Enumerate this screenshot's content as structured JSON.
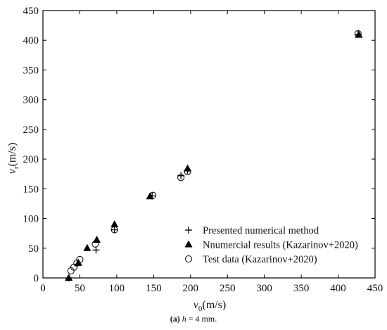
{
  "chart_data": {
    "type": "scatter",
    "xlabel": {
      "main": "v",
      "sub": "0",
      "unit": "(m/s)"
    },
    "ylabel": {
      "main": "v",
      "sub": "r",
      "unit": "(m/s)"
    },
    "xlim": [
      0,
      450
    ],
    "ylim": [
      0,
      450
    ],
    "xticks": [
      0,
      50,
      100,
      150,
      200,
      250,
      300,
      350,
      400,
      450
    ],
    "yticks": [
      0,
      50,
      100,
      150,
      200,
      250,
      300,
      350,
      400,
      450
    ],
    "grid": false,
    "legend_position": "bottom-right",
    "series": [
      {
        "name": "Presented numerical method",
        "marker": "plus",
        "color": "#000000",
        "points": [
          [
            35,
            0
          ],
          [
            72,
            47
          ],
          [
            97,
            81
          ],
          [
            148,
            138
          ],
          [
            187,
            172
          ],
          [
            196,
            181
          ],
          [
            427,
            410
          ]
        ]
      },
      {
        "name": "Nnumercial results (Kazarinov+2020)",
        "marker": "triangle",
        "color": "#000000",
        "points": [
          [
            35,
            0
          ],
          [
            48,
            25
          ],
          [
            60,
            50
          ],
          [
            73,
            64
          ],
          [
            97,
            90
          ],
          [
            145,
            137
          ],
          [
            196,
            184
          ],
          [
            428,
            409
          ]
        ]
      },
      {
        "name": "Test data (Kazarinov+2020)",
        "marker": "circle",
        "color": "#000000",
        "points": [
          [
            38,
            12
          ],
          [
            42,
            18
          ],
          [
            46,
            25
          ],
          [
            50,
            31
          ],
          [
            71,
            57
          ],
          [
            97,
            81
          ],
          [
            149,
            139
          ],
          [
            187,
            169
          ],
          [
            196,
            179
          ],
          [
            427,
            411
          ]
        ]
      }
    ]
  },
  "caption": {
    "label": "(a)",
    "var": "h",
    "text": "= 4 mm."
  }
}
